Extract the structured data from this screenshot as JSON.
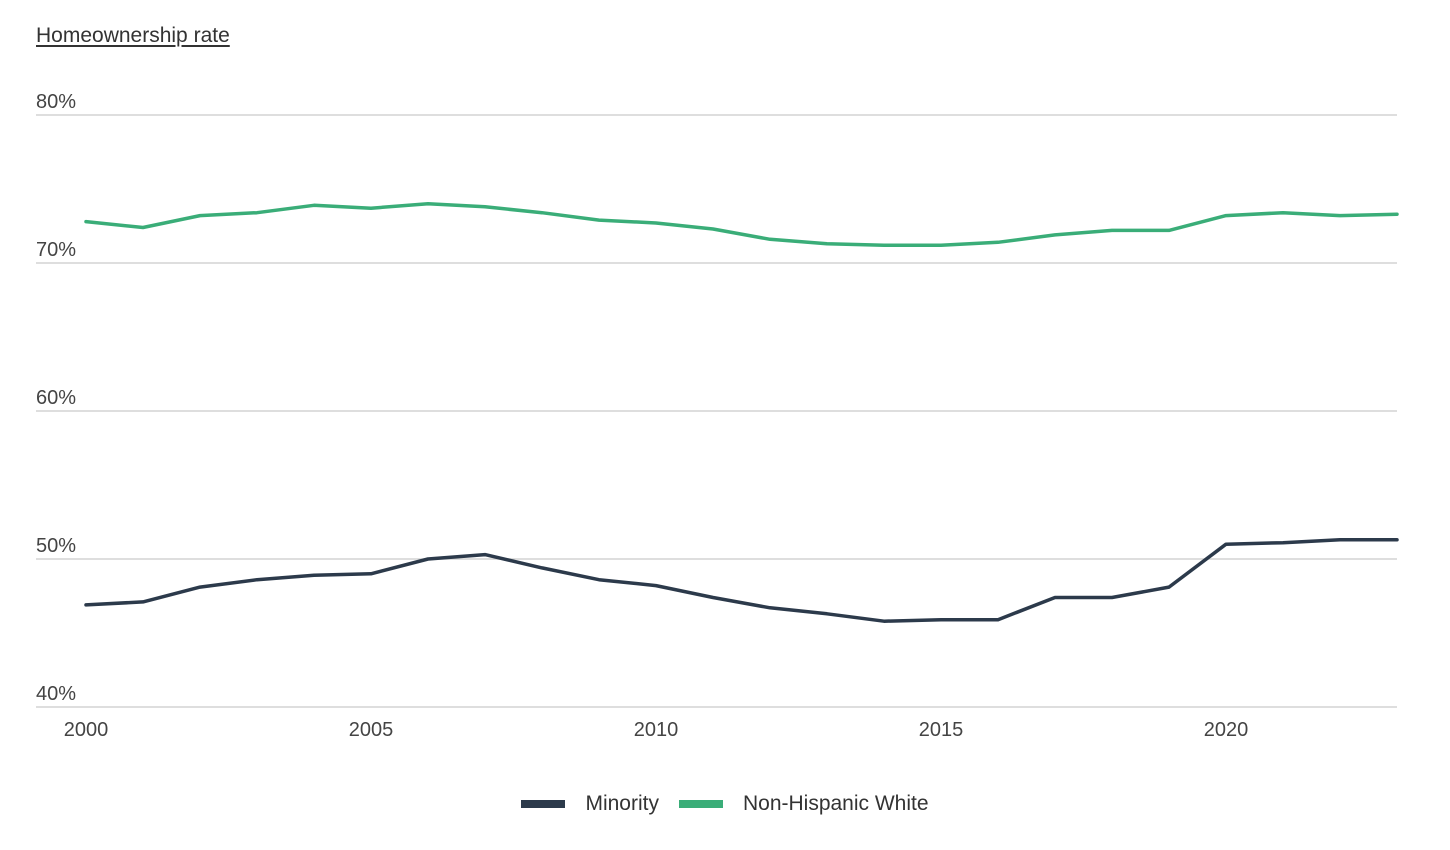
{
  "chart_data": {
    "type": "line",
    "title": "",
    "ylabel": "Homeownership rate",
    "xlabel": "",
    "x": [
      2000,
      2001,
      2002,
      2003,
      2004,
      2005,
      2006,
      2007,
      2008,
      2009,
      2010,
      2011,
      2012,
      2013,
      2014,
      2015,
      2016,
      2017,
      2018,
      2019,
      2020,
      2021,
      2022,
      2023
    ],
    "xlim": [
      2000,
      2023
    ],
    "ylim": [
      40,
      80
    ],
    "x_ticks": [
      {
        "value": 2000,
        "label": "2000"
      },
      {
        "value": 2005,
        "label": "2005"
      },
      {
        "value": 2010,
        "label": "2010"
      },
      {
        "value": 2015,
        "label": "2015"
      },
      {
        "value": 2020,
        "label": "2020"
      }
    ],
    "y_ticks": [
      {
        "value": 80,
        "label": "80%"
      },
      {
        "value": 70,
        "label": "70%"
      },
      {
        "value": 60,
        "label": "60%"
      },
      {
        "value": 50,
        "label": "50%"
      },
      {
        "value": 40,
        "label": "40%"
      }
    ],
    "grid": "horizontal",
    "legend_position": "bottom-center",
    "series": [
      {
        "name": "Minority",
        "color": "#2c3a4b",
        "values": [
          46.9,
          47.1,
          48.1,
          48.6,
          48.9,
          49.0,
          50.0,
          50.3,
          49.4,
          48.6,
          48.2,
          47.4,
          46.7,
          46.3,
          45.8,
          45.9,
          45.9,
          47.4,
          47.4,
          48.1,
          51.0,
          51.1,
          51.3,
          51.3
        ]
      },
      {
        "name": "Non-Hispanic White",
        "color": "#3aad78",
        "values": [
          72.8,
          72.4,
          73.2,
          73.4,
          73.9,
          73.7,
          74.0,
          73.8,
          73.4,
          72.9,
          72.7,
          72.3,
          71.6,
          71.3,
          71.2,
          71.2,
          71.4,
          71.9,
          72.2,
          72.2,
          73.2,
          73.4,
          73.2,
          73.3
        ]
      }
    ]
  }
}
